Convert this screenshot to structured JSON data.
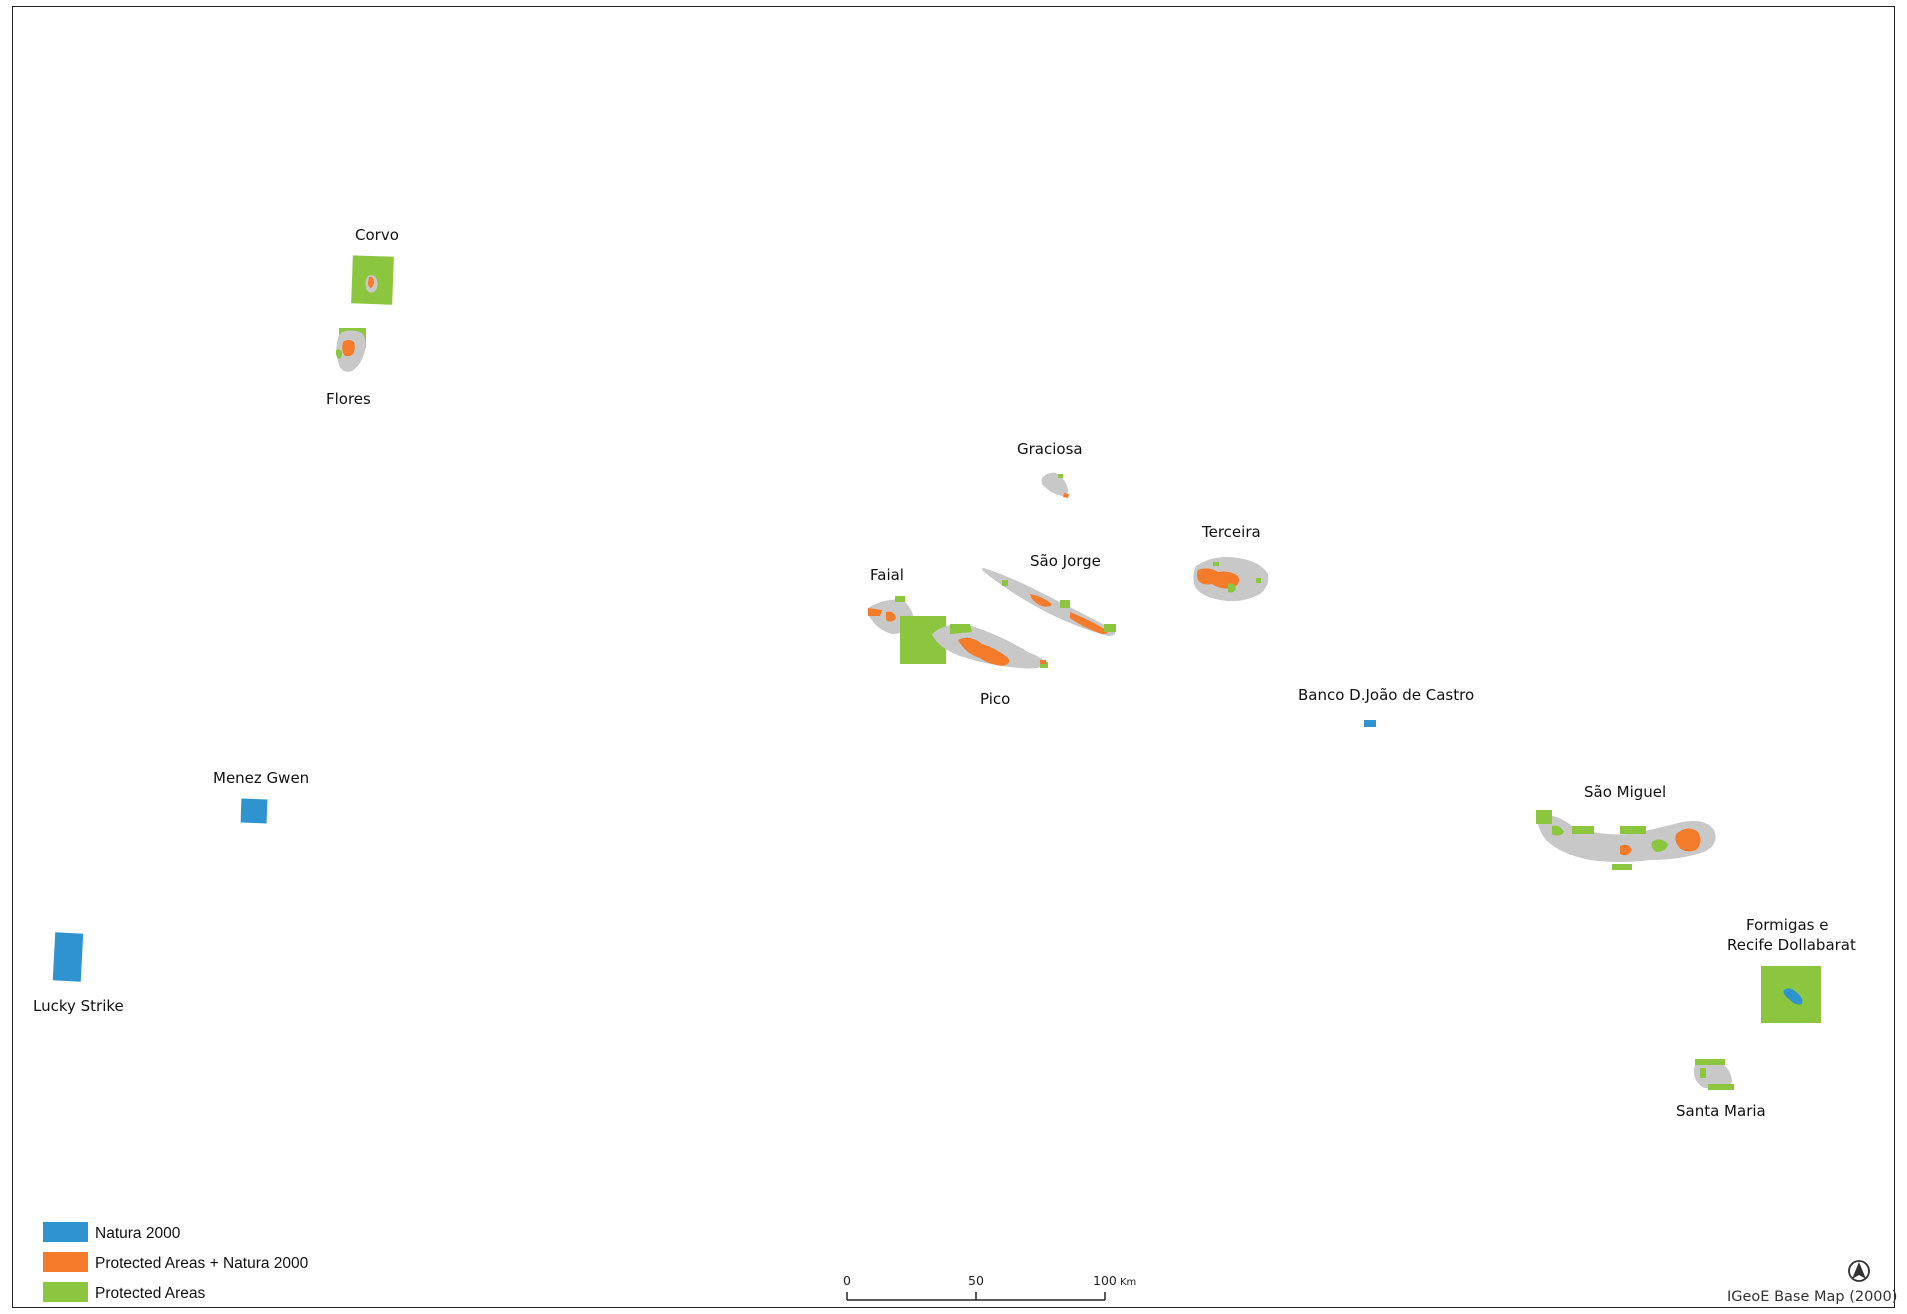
{
  "colors": {
    "natura_2000": "#2e93cf",
    "protected_natura": "#f47b2a",
    "protected_areas": "#8cc63f",
    "land": "#c8c8c8",
    "frame": "#222222"
  },
  "labels": {
    "corvo": "Corvo",
    "flores": "Flores",
    "graciosa": "Graciosa",
    "terceira": "Terceira",
    "faial": "Faial",
    "sao_jorge": "São Jorge",
    "pico": "Pico",
    "banco": "Banco D.João de Castro",
    "menez_gwen": "Menez Gwen",
    "sao_miguel": "São Miguel",
    "lucky_strike": "Lucky Strike",
    "formigas_line1": "Formigas e",
    "formigas_line2": "Recife Dollabarat",
    "santa_maria": "Santa Maria"
  },
  "legend": {
    "items": [
      {
        "label": "Natura 2000",
        "color": "#2e93cf"
      },
      {
        "label": "Protected Areas + Natura 2000",
        "color": "#f47b2a"
      },
      {
        "label": "Protected Areas",
        "color": "#8cc63f"
      }
    ]
  },
  "scale_bar": {
    "ticks": [
      "0",
      "50",
      "100"
    ],
    "unit": "Km"
  },
  "north_arrow_icon": "north-arrow-icon",
  "credit": "IGeoE Base Map (2000)"
}
